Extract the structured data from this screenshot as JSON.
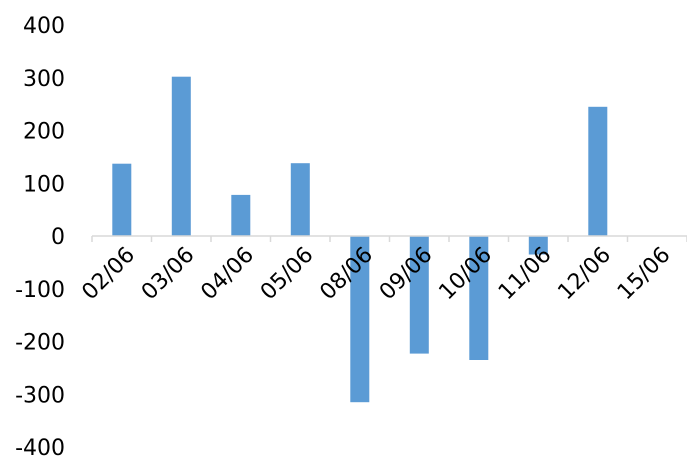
{
  "chart_data": {
    "type": "bar",
    "categories": [
      "02/06",
      "03/06",
      "04/06",
      "05/06",
      "08/06",
      "09/06",
      "10/06",
      "11/06",
      "12/06",
      "15/06"
    ],
    "values": [
      137,
      302,
      78,
      138,
      -315,
      -223,
      -235,
      -35,
      245,
      0
    ],
    "ylim": [
      -400,
      400
    ],
    "yticks": [
      400,
      300,
      200,
      100,
      0,
      -100,
      -200,
      -300,
      -400
    ],
    "grid": false,
    "legend": "none",
    "bar_color": "#5B9BD5",
    "axis_color": "#D9D9D9"
  }
}
